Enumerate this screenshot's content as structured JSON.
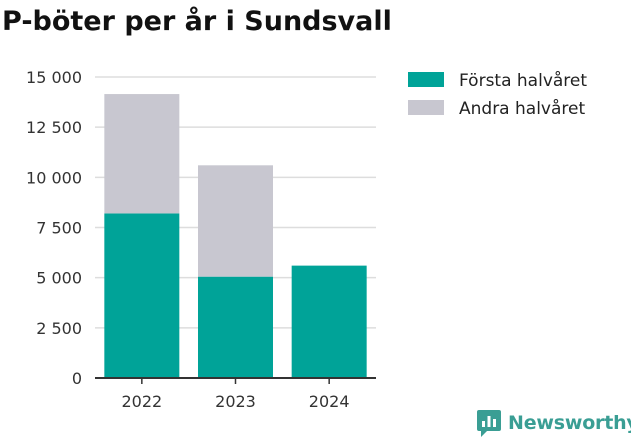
{
  "chart_data": {
    "type": "bar",
    "stacked": true,
    "title": "P-böter per år i Sundsvall",
    "xlabel": "",
    "ylabel": "",
    "categories": [
      "2022",
      "2023",
      "2024"
    ],
    "series": [
      {
        "name": "Första halvåret",
        "values": [
          8200,
          5050,
          5600
        ],
        "color": "#00a398"
      },
      {
        "name": "Andra halvåret",
        "values": [
          5950,
          5550,
          0
        ],
        "color": "#c8c7d0"
      }
    ],
    "ylim": [
      0,
      15000
    ],
    "yticks": [
      0,
      2500,
      5000,
      7500,
      10000,
      12500,
      15000
    ],
    "ytick_labels": [
      "0",
      "2 500",
      "5 000",
      "7 500",
      "10 000",
      "12 500",
      "15 000"
    ],
    "grid": true,
    "legend_position": "top-right"
  },
  "branding": {
    "name": "Newsworthy",
    "color": "#3a9e94",
    "icon": "newsworthy-logo-icon"
  }
}
